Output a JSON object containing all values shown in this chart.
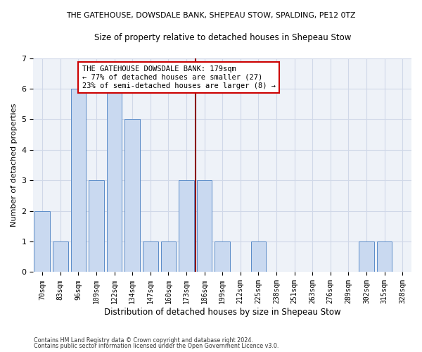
{
  "title1": "THE GATEHOUSE, DOWSDALE BANK, SHEPEAU STOW, SPALDING, PE12 0TZ",
  "title2": "Size of property relative to detached houses in Shepeau Stow",
  "xlabel": "Distribution of detached houses by size in Shepeau Stow",
  "ylabel": "Number of detached properties",
  "footer1": "Contains HM Land Registry data © Crown copyright and database right 2024.",
  "footer2": "Contains public sector information licensed under the Open Government Licence v3.0.",
  "categories": [
    "70sqm",
    "83sqm",
    "96sqm",
    "109sqm",
    "122sqm",
    "134sqm",
    "147sqm",
    "160sqm",
    "173sqm",
    "186sqm",
    "199sqm",
    "212sqm",
    "225sqm",
    "238sqm",
    "251sqm",
    "263sqm",
    "276sqm",
    "289sqm",
    "302sqm",
    "315sqm",
    "328sqm"
  ],
  "values": [
    2,
    1,
    6,
    3,
    6,
    5,
    1,
    1,
    3,
    3,
    1,
    0,
    1,
    0,
    0,
    0,
    0,
    0,
    1,
    1,
    0
  ],
  "bar_color": "#c9d9f0",
  "bar_edge_color": "#5b8cc8",
  "vline_color": "#8b0000",
  "annotation_text": "THE GATEHOUSE DOWSDALE BANK: 179sqm\n← 77% of detached houses are smaller (27)\n23% of semi-detached houses are larger (8) →",
  "annotation_box_color": "#ffffff",
  "annotation_box_edge_color": "#cc0000",
  "ylim": [
    0,
    7
  ],
  "yticks": [
    0,
    1,
    2,
    3,
    4,
    5,
    6,
    7
  ],
  "grid_color": "#d0d8e8",
  "background_color": "#eef2f8",
  "title1_fontsize": 7.8,
  "title2_fontsize": 8.5,
  "tick_fontsize": 7,
  "ylabel_fontsize": 8,
  "xlabel_fontsize": 8.5,
  "annotation_fontsize": 7.5,
  "footer_fontsize": 5.8
}
